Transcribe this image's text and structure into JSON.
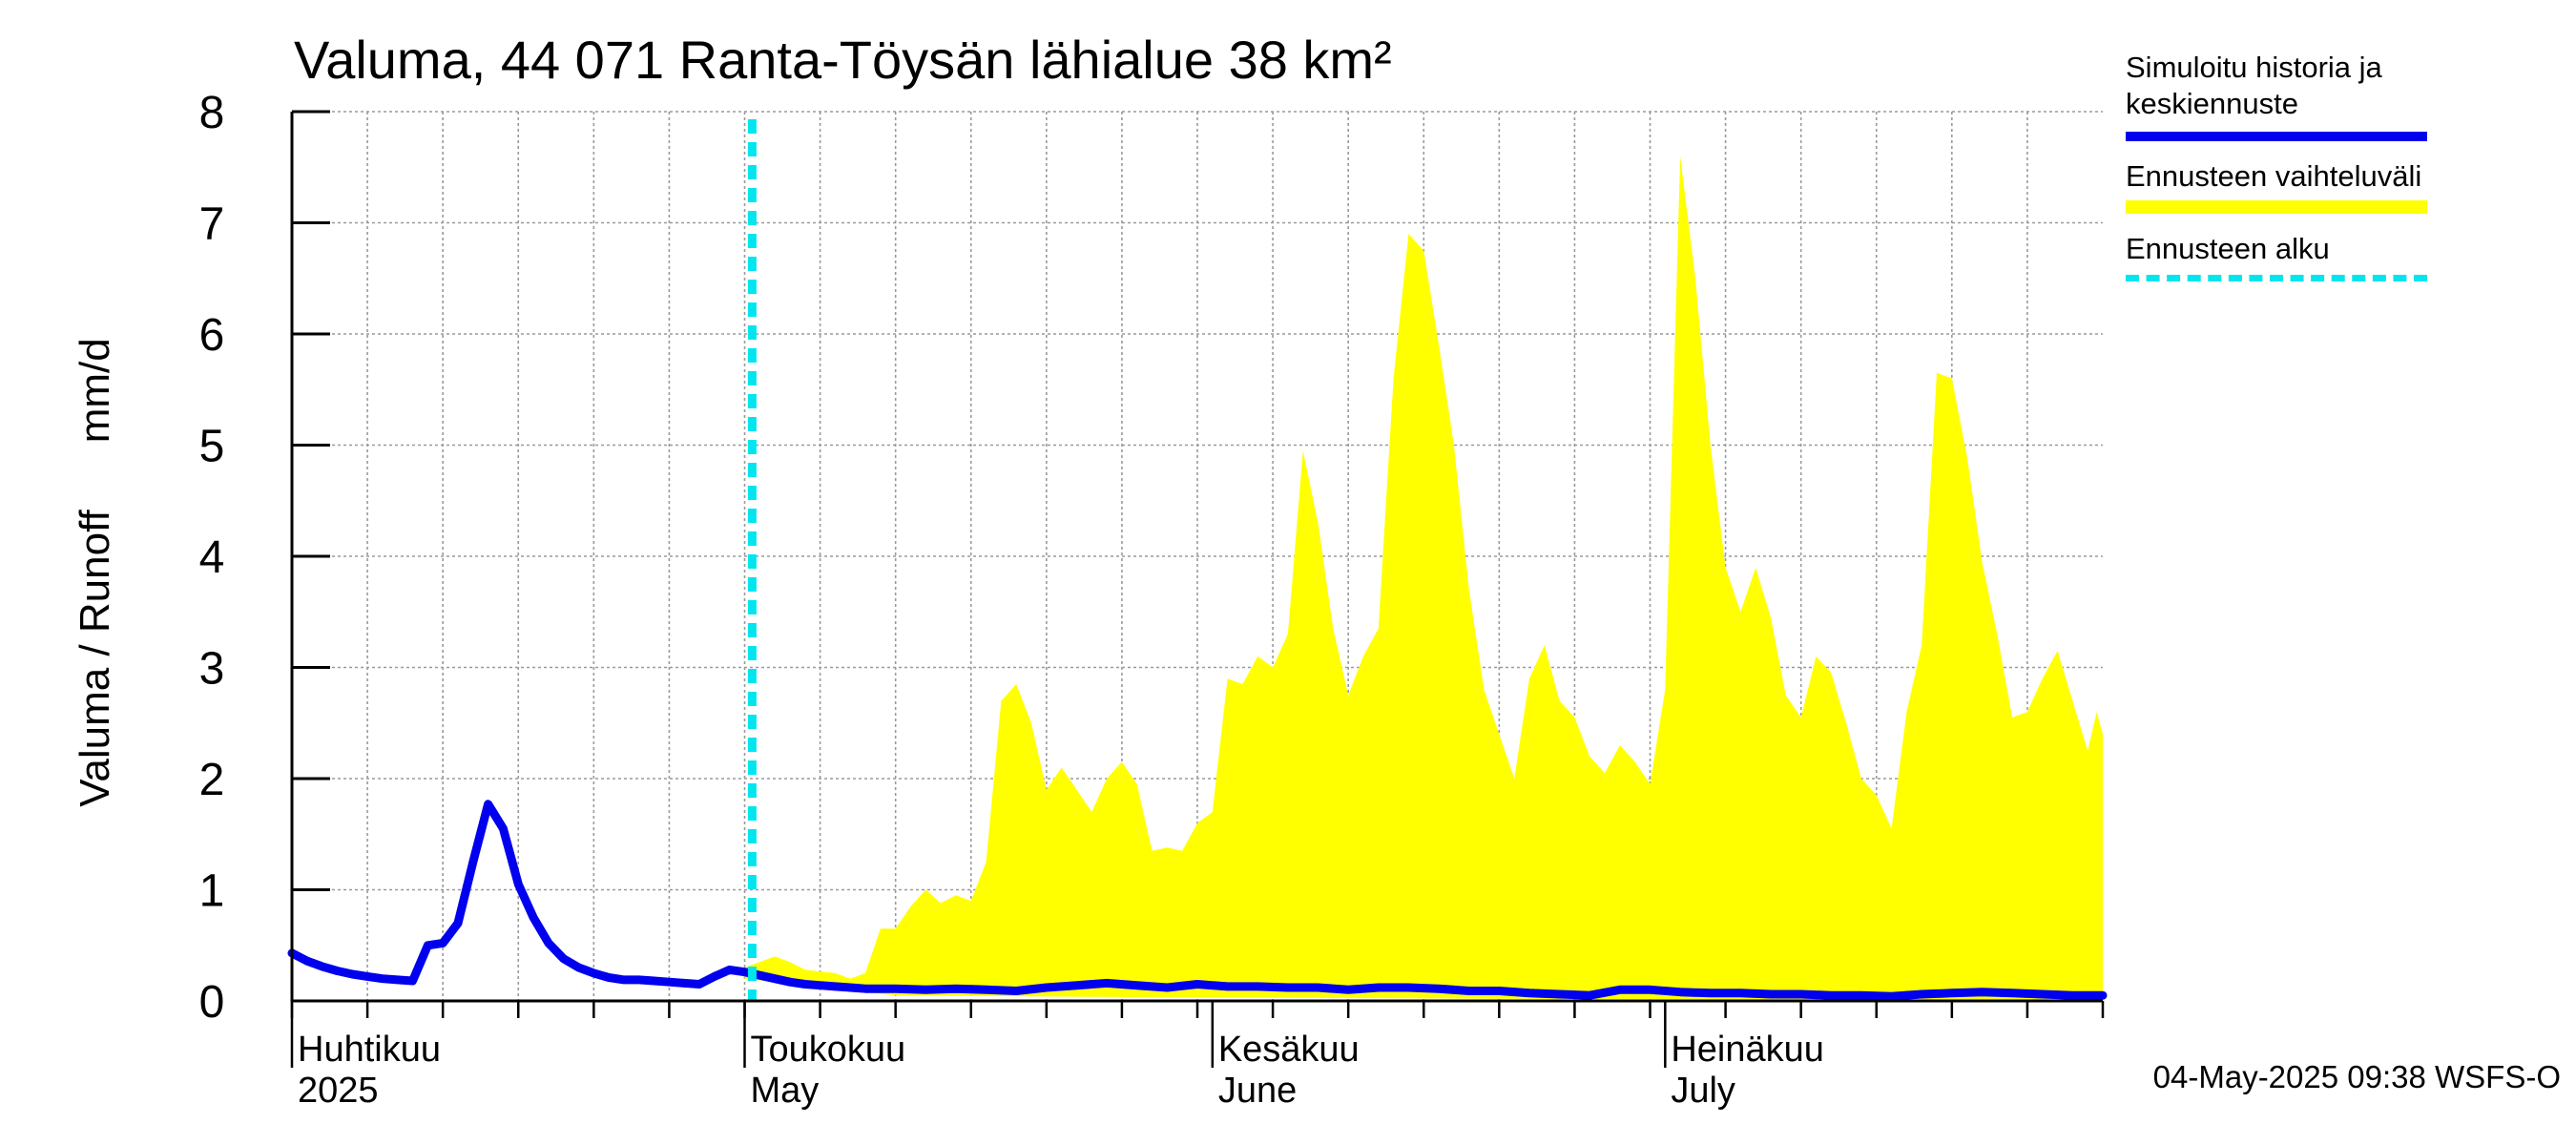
{
  "chart_data": {
    "type": "area",
    "title": "Valuma, 44 071 Ranta-Töysän lähialue 38 km²",
    "ylabel": "Valuma / Runoff",
    "yunit": "mm/d",
    "ylim": [
      0,
      8
    ],
    "yticks": [
      "0",
      "1",
      "2",
      "3",
      "4",
      "5",
      "6",
      "7",
      "8"
    ],
    "x_range_days": [
      0,
      120
    ],
    "month_labels": [
      {
        "fi": "Huhtikuu",
        "en": "2025",
        "day": 0
      },
      {
        "fi": "Toukokuu",
        "en": "May",
        "day": 30
      },
      {
        "fi": "Kesäkuu",
        "en": "June",
        "day": 61
      },
      {
        "fi": "Heinäkuu",
        "en": "July",
        "day": 91
      }
    ],
    "forecast_start_day": 30.5,
    "series": [
      {
        "name": "Simuloitu historia ja keskiennuste",
        "color": "#0000ee",
        "points": [
          [
            0,
            0.43
          ],
          [
            1,
            0.36
          ],
          [
            2,
            0.31
          ],
          [
            3,
            0.27
          ],
          [
            4,
            0.24
          ],
          [
            5,
            0.22
          ],
          [
            6,
            0.2
          ],
          [
            7,
            0.19
          ],
          [
            8,
            0.18
          ],
          [
            9,
            0.5
          ],
          [
            10,
            0.52
          ],
          [
            11,
            0.7
          ],
          [
            12,
            1.25
          ],
          [
            13,
            1.77
          ],
          [
            14,
            1.55
          ],
          [
            15,
            1.05
          ],
          [
            16,
            0.75
          ],
          [
            17,
            0.52
          ],
          [
            18,
            0.38
          ],
          [
            19,
            0.3
          ],
          [
            20,
            0.25
          ],
          [
            21,
            0.21
          ],
          [
            22,
            0.19
          ],
          [
            23,
            0.19
          ],
          [
            24,
            0.18
          ],
          [
            25,
            0.17
          ],
          [
            26,
            0.16
          ],
          [
            27,
            0.15
          ],
          [
            28,
            0.22
          ],
          [
            29,
            0.28
          ],
          [
            30,
            0.26
          ],
          [
            31,
            0.23
          ],
          [
            32,
            0.2
          ],
          [
            33,
            0.17
          ],
          [
            34,
            0.15
          ],
          [
            35,
            0.14
          ],
          [
            36,
            0.13
          ],
          [
            37,
            0.12
          ],
          [
            38,
            0.11
          ],
          [
            40,
            0.11
          ],
          [
            42,
            0.1
          ],
          [
            44,
            0.11
          ],
          [
            46,
            0.1
          ],
          [
            48,
            0.09
          ],
          [
            50,
            0.12
          ],
          [
            52,
            0.14
          ],
          [
            54,
            0.16
          ],
          [
            56,
            0.14
          ],
          [
            58,
            0.12
          ],
          [
            60,
            0.15
          ],
          [
            62,
            0.13
          ],
          [
            64,
            0.13
          ],
          [
            66,
            0.12
          ],
          [
            68,
            0.12
          ],
          [
            70,
            0.1
          ],
          [
            72,
            0.12
          ],
          [
            74,
            0.12
          ],
          [
            76,
            0.11
          ],
          [
            78,
            0.09
          ],
          [
            80,
            0.09
          ],
          [
            82,
            0.07
          ],
          [
            84,
            0.06
          ],
          [
            86,
            0.05
          ],
          [
            88,
            0.1
          ],
          [
            90,
            0.1
          ],
          [
            92,
            0.08
          ],
          [
            94,
            0.07
          ],
          [
            96,
            0.07
          ],
          [
            98,
            0.06
          ],
          [
            100,
            0.06
          ],
          [
            102,
            0.05
          ],
          [
            104,
            0.05
          ],
          [
            106,
            0.04
          ],
          [
            108,
            0.06
          ],
          [
            110,
            0.07
          ],
          [
            112,
            0.08
          ],
          [
            114,
            0.07
          ],
          [
            116,
            0.06
          ],
          [
            118,
            0.05
          ],
          [
            120,
            0.05
          ]
        ]
      },
      {
        "name": "Ennusteen vaihteluväli",
        "color": "#ffff00",
        "upper": [
          [
            30,
            0.3
          ],
          [
            32,
            0.4
          ],
          [
            33,
            0.35
          ],
          [
            34,
            0.28
          ],
          [
            36,
            0.25
          ],
          [
            37,
            0.2
          ],
          [
            38,
            0.25
          ],
          [
            39,
            0.65
          ],
          [
            40,
            0.65
          ],
          [
            41,
            0.85
          ],
          [
            42,
            1.0
          ],
          [
            43,
            0.88
          ],
          [
            44,
            0.95
          ],
          [
            45,
            0.9
          ],
          [
            46,
            1.25
          ],
          [
            47,
            2.7
          ],
          [
            48,
            2.85
          ],
          [
            49,
            2.5
          ],
          [
            50,
            1.9
          ],
          [
            51,
            2.1
          ],
          [
            52,
            1.9
          ],
          [
            53,
            1.7
          ],
          [
            54,
            2.0
          ],
          [
            55,
            2.15
          ],
          [
            56,
            1.95
          ],
          [
            57,
            1.35
          ],
          [
            58,
            1.38
          ],
          [
            59,
            1.35
          ],
          [
            60,
            1.6
          ],
          [
            61,
            1.7
          ],
          [
            62,
            2.9
          ],
          [
            63,
            2.85
          ],
          [
            64,
            3.1
          ],
          [
            65,
            3.0
          ],
          [
            66,
            3.3
          ],
          [
            67,
            4.95
          ],
          [
            68,
            4.3
          ],
          [
            69,
            3.35
          ],
          [
            70,
            2.75
          ],
          [
            71,
            3.1
          ],
          [
            72,
            3.35
          ],
          [
            73,
            5.6
          ],
          [
            74,
            6.9
          ],
          [
            75,
            6.75
          ],
          [
            76,
            5.9
          ],
          [
            77,
            5.0
          ],
          [
            78,
            3.7
          ],
          [
            79,
            2.8
          ],
          [
            80,
            2.4
          ],
          [
            81,
            2.0
          ],
          [
            82,
            2.9
          ],
          [
            83,
            3.2
          ],
          [
            84,
            2.7
          ],
          [
            85,
            2.55
          ],
          [
            86,
            2.2
          ],
          [
            87,
            2.05
          ],
          [
            88,
            2.3
          ],
          [
            89,
            2.15
          ],
          [
            90,
            1.95
          ],
          [
            91,
            2.8
          ],
          [
            92,
            7.6
          ],
          [
            93,
            6.5
          ],
          [
            94,
            5.0
          ],
          [
            95,
            3.9
          ],
          [
            96,
            3.5
          ],
          [
            97,
            3.9
          ],
          [
            98,
            3.45
          ],
          [
            99,
            2.75
          ],
          [
            100,
            2.55
          ],
          [
            101,
            3.1
          ],
          [
            102,
            2.95
          ],
          [
            103,
            2.5
          ],
          [
            104,
            2.0
          ],
          [
            105,
            1.85
          ],
          [
            106,
            1.55
          ],
          [
            107,
            2.6
          ],
          [
            108,
            3.2
          ],
          [
            109,
            5.65
          ],
          [
            110,
            5.6
          ],
          [
            111,
            4.9
          ],
          [
            112,
            3.95
          ],
          [
            113,
            3.3
          ],
          [
            114,
            2.55
          ],
          [
            115,
            2.6
          ],
          [
            116,
            2.9
          ],
          [
            117,
            3.15
          ],
          [
            118,
            2.7
          ],
          [
            119,
            2.25
          ],
          [
            119.6,
            2.6
          ],
          [
            120,
            2.4
          ]
        ],
        "lower": [
          [
            30,
            0.2
          ],
          [
            40,
            0.05
          ],
          [
            60,
            0.03
          ],
          [
            80,
            0.02
          ],
          [
            100,
            0.01
          ],
          [
            120,
            0.01
          ]
        ]
      },
      {
        "name": "Ennusteen alku",
        "color": "#00e5ee"
      }
    ],
    "legend_position": "right",
    "grid": true
  },
  "footer": "04-May-2025 09:38 WSFS-O"
}
